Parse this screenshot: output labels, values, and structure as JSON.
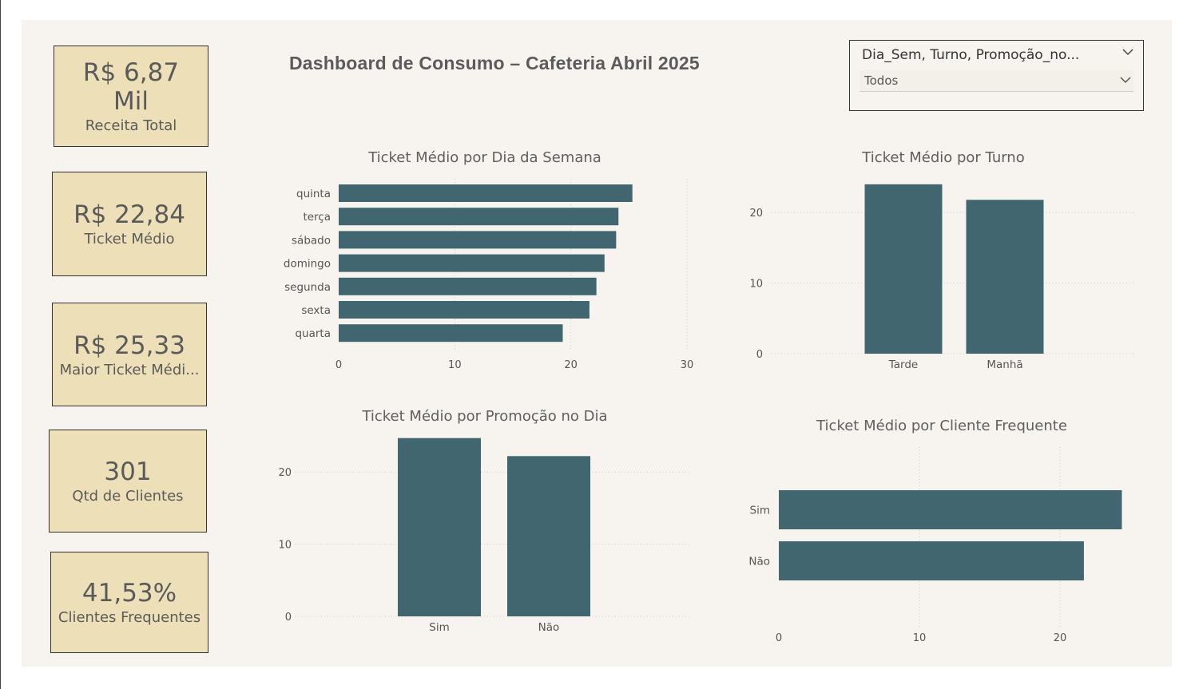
{
  "title": "Dashboard de Consumo – Cafeteria Abril 2025",
  "cards": [
    {
      "value": "R$ 6,87 Mil",
      "label": "Receita Total"
    },
    {
      "value": "R$ 22,84",
      "label": "Ticket Médio"
    },
    {
      "value": "R$ 25,33",
      "label": "Maior Ticket Médi..."
    },
    {
      "value": "301",
      "label": "Qtd de Clientes"
    },
    {
      "value": "41,53%",
      "label": "Clientes Frequentes"
    }
  ],
  "slicer": {
    "header": "Dia_Sem, Turno, Promoção_no...",
    "selected": "Todos"
  },
  "colors": {
    "bar": "#41666f",
    "card": "#ede0b8",
    "background": "#f7f4ef"
  },
  "chart_data": [
    {
      "type": "bar",
      "orientation": "horizontal",
      "title": "Ticket Médio por Dia da Semana",
      "categories": [
        "quinta",
        "terça",
        "sábado",
        "domingo",
        "segunda",
        "sexta",
        "quarta"
      ],
      "values": [
        25.3,
        24.1,
        23.9,
        22.9,
        22.2,
        21.6,
        19.3
      ],
      "ticks": [
        "0",
        "10",
        "20",
        "30"
      ],
      "xlim": [
        0,
        30
      ]
    },
    {
      "type": "bar",
      "orientation": "vertical",
      "title": "Ticket Médio por Turno",
      "categories": [
        "Tarde",
        "Manhã"
      ],
      "values": [
        24.0,
        21.8
      ],
      "ticks": [
        "0",
        "10",
        "20"
      ],
      "ylim": [
        0,
        25
      ]
    },
    {
      "type": "bar",
      "orientation": "vertical",
      "title": "Ticket Médio por Promoção no Dia",
      "categories": [
        "Sim",
        "Não"
      ],
      "values": [
        24.7,
        22.2
      ],
      "ticks": [
        "0",
        "10",
        "20"
      ],
      "ylim": [
        0,
        25
      ]
    },
    {
      "type": "bar",
      "orientation": "horizontal",
      "title": "Ticket Médio por Cliente Frequente",
      "categories": [
        "Sim",
        "Não"
      ],
      "values": [
        24.4,
        21.7
      ],
      "ticks": [
        "0",
        "10",
        "20"
      ],
      "xlim": [
        0,
        25
      ]
    }
  ]
}
